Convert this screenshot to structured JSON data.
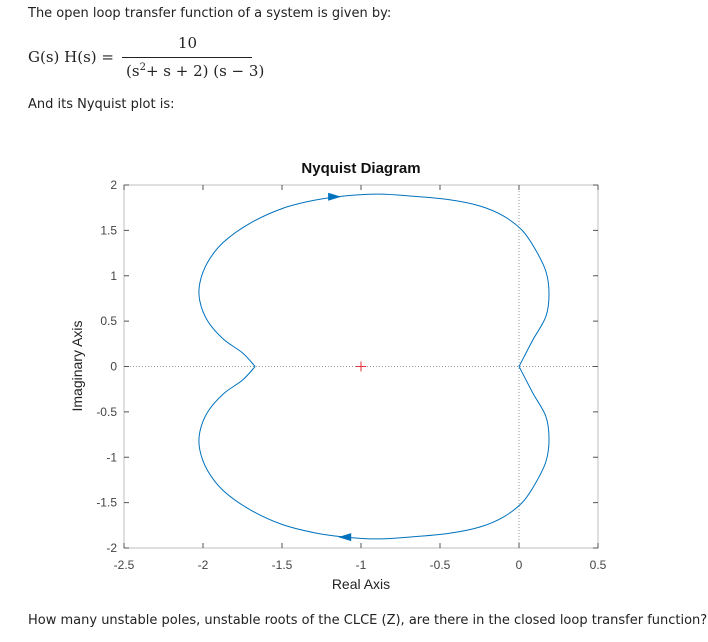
{
  "intro_text": "The open loop transfer function of a system is given by:",
  "equation": {
    "lhs": "G(s) H(s) =",
    "numerator": "10",
    "denominator_pre": "(s",
    "denominator_exp": "2",
    "denominator_post": "+ s + 2) (s − 3)"
  },
  "nyquist_intro": "And its Nyquist plot is:",
  "question": "How many unstable poles,  unstable roots of the CLCE (Z),  are there in the closed loop transfer function?",
  "chart_data": {
    "type": "line",
    "title": "Nyquist Diagram",
    "xlabel": "Real Axis",
    "ylabel": "Imaginary Axis",
    "xlim": [
      -2.5,
      0.5
    ],
    "ylim": [
      -2,
      2
    ],
    "xticks": [
      -2.5,
      -2,
      -1.5,
      -1,
      -0.5,
      0,
      0.5
    ],
    "yticks": [
      2,
      1.5,
      1,
      0.5,
      0,
      -0.5,
      -1,
      -1.5,
      -2
    ],
    "xtick_labels": [
      "-2.5",
      "-2",
      "-1.5",
      "-1",
      "-0.5",
      "0",
      "0.5"
    ],
    "ytick_labels": [
      "2",
      "1.5",
      "1",
      "0.5",
      "0",
      "-0.5",
      "-1",
      "-1.5",
      "-2"
    ],
    "critical_point": [
      -1,
      0
    ],
    "critical_marker_color": "#e8303a",
    "line_color": "#0072BD",
    "grid": false,
    "series": [
      {
        "x": [
          0,
          0.03,
          0.09,
          0.17,
          0.19,
          0.17,
          0.1,
          0.02,
          -0.1,
          -0.25,
          -0.45,
          -0.7,
          -0.9,
          -1.1,
          -1.3,
          -1.5,
          -1.7,
          -1.87,
          -1.97,
          -2.02,
          -2.02,
          -1.97,
          -1.87,
          -1.75,
          -1.67
        ],
        "y": [
          0,
          0.1,
          0.3,
          0.55,
          0.8,
          1.05,
          1.3,
          1.5,
          1.66,
          1.77,
          1.84,
          1.88,
          1.9,
          1.88,
          1.83,
          1.74,
          1.58,
          1.37,
          1.15,
          0.92,
          0.72,
          0.5,
          0.3,
          0.15,
          0
        ]
      },
      {
        "x": [
          0,
          0.03,
          0.09,
          0.17,
          0.19,
          0.17,
          0.1,
          0.02,
          -0.1,
          -0.25,
          -0.45,
          -0.7,
          -0.9,
          -1.1,
          -1.3,
          -1.5,
          -1.7,
          -1.87,
          -1.97,
          -2.02,
          -2.02,
          -1.97,
          -1.87,
          -1.75,
          -1.67
        ],
        "y": [
          0,
          -0.1,
          -0.3,
          -0.55,
          -0.8,
          -1.05,
          -1.3,
          -1.5,
          -1.66,
          -1.77,
          -1.84,
          -1.88,
          -1.9,
          -1.88,
          -1.83,
          -1.74,
          -1.58,
          -1.37,
          -1.15,
          -0.92,
          -0.72,
          -0.5,
          -0.3,
          -0.15,
          0
        ]
      }
    ],
    "arrows": [
      {
        "x": -1.17,
        "y": 1.87,
        "direction": "right"
      },
      {
        "x": -1.1,
        "y": -1.88,
        "direction": "left"
      }
    ]
  }
}
